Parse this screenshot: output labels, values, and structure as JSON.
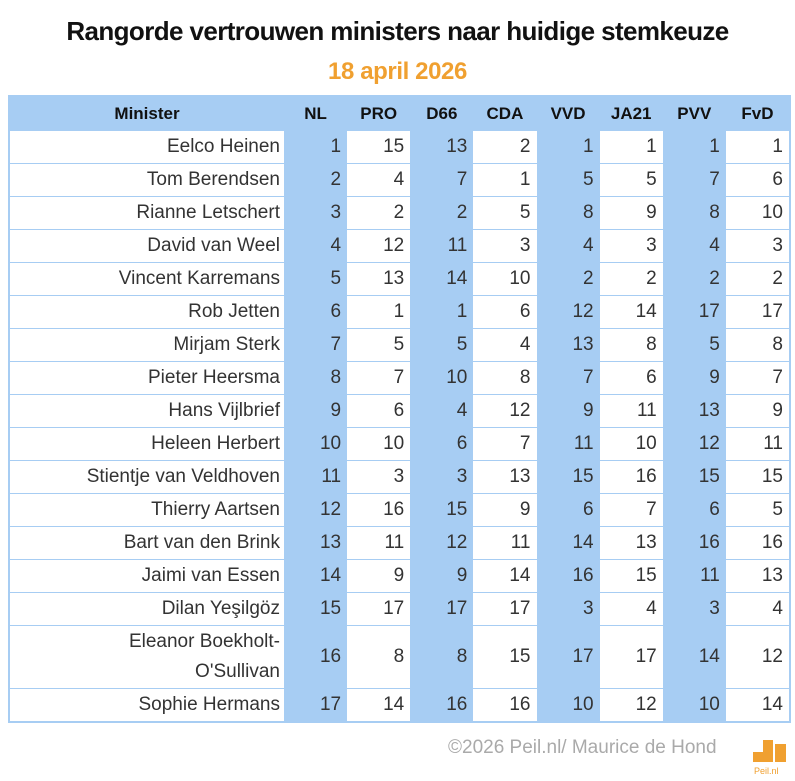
{
  "header": {
    "title": "Rangorde vertrouwen ministers naar huidige stemkeuze",
    "date": "18 april 2026"
  },
  "table": {
    "columns": [
      "Minister",
      "NL",
      "PRO",
      "D66",
      "CDA",
      "VVD",
      "JA21",
      "PVV",
      "FvD"
    ],
    "rows": [
      {
        "name": "Eelco Heinen",
        "values": [
          1,
          15,
          13,
          2,
          1,
          1,
          1,
          1
        ]
      },
      {
        "name": "Tom Berendsen",
        "values": [
          2,
          4,
          7,
          1,
          5,
          5,
          7,
          6
        ]
      },
      {
        "name": "Rianne Letschert",
        "values": [
          3,
          2,
          2,
          5,
          8,
          9,
          8,
          10
        ]
      },
      {
        "name": "David van Weel",
        "values": [
          4,
          12,
          11,
          3,
          4,
          3,
          4,
          3
        ]
      },
      {
        "name": "Vincent Karremans",
        "values": [
          5,
          13,
          14,
          10,
          2,
          2,
          2,
          2
        ]
      },
      {
        "name": "Rob Jetten",
        "values": [
          6,
          1,
          1,
          6,
          12,
          14,
          17,
          17
        ]
      },
      {
        "name": "Mirjam Sterk",
        "values": [
          7,
          5,
          5,
          4,
          13,
          8,
          5,
          8
        ]
      },
      {
        "name": "Pieter Heersma",
        "values": [
          8,
          7,
          10,
          8,
          7,
          6,
          9,
          7
        ]
      },
      {
        "name": "Hans Vijlbrief",
        "values": [
          9,
          6,
          4,
          12,
          9,
          11,
          13,
          9
        ]
      },
      {
        "name": "Heleen Herbert",
        "values": [
          10,
          10,
          6,
          7,
          11,
          10,
          12,
          11
        ]
      },
      {
        "name": "Stientje van Veldhoven",
        "values": [
          11,
          3,
          3,
          13,
          15,
          16,
          15,
          15
        ]
      },
      {
        "name": "Thierry Aartsen",
        "values": [
          12,
          16,
          15,
          9,
          6,
          7,
          6,
          5
        ]
      },
      {
        "name": "Bart van den Brink",
        "values": [
          13,
          11,
          12,
          11,
          14,
          13,
          16,
          16
        ]
      },
      {
        "name": "Jaimi van Essen",
        "values": [
          14,
          9,
          9,
          14,
          16,
          15,
          11,
          13
        ]
      },
      {
        "name": "Dilan Yeşilgöz",
        "values": [
          15,
          17,
          17,
          17,
          3,
          4,
          3,
          4
        ]
      },
      {
        "name": "Eleanor Boekholt-O'Sullivan",
        "name_line1": "Eleanor Boekholt-",
        "name_line2": "O'Sullivan",
        "values": [
          16,
          8,
          8,
          15,
          17,
          17,
          14,
          12
        ]
      },
      {
        "name": "Sophie Hermans",
        "values": [
          17,
          14,
          16,
          16,
          10,
          12,
          10,
          14
        ]
      }
    ]
  },
  "footer": {
    "copyright": "©2026 Peil.nl/ Maurice de Hond",
    "logo_text": "Peil.nl"
  },
  "colors": {
    "header_bg": "#a7cdf3",
    "accent_orange": "#f0a030",
    "text": "#333333"
  },
  "chart_data": {
    "type": "table",
    "title": "Rangorde vertrouwen ministers naar huidige stemkeuze",
    "subtitle": "18 april 2026",
    "columns": [
      "Minister",
      "NL",
      "PRO",
      "D66",
      "CDA",
      "VVD",
      "JA21",
      "PVV",
      "FvD"
    ],
    "rows": [
      [
        "Eelco Heinen",
        1,
        15,
        13,
        2,
        1,
        1,
        1,
        1
      ],
      [
        "Tom Berendsen",
        2,
        4,
        7,
        1,
        5,
        5,
        7,
        6
      ],
      [
        "Rianne Letschert",
        3,
        2,
        2,
        5,
        8,
        9,
        8,
        10
      ],
      [
        "David van Weel",
        4,
        12,
        11,
        3,
        4,
        3,
        4,
        3
      ],
      [
        "Vincent Karremans",
        5,
        13,
        14,
        10,
        2,
        2,
        2,
        2
      ],
      [
        "Rob Jetten",
        6,
        1,
        1,
        6,
        12,
        14,
        17,
        17
      ],
      [
        "Mirjam Sterk",
        7,
        5,
        5,
        4,
        13,
        8,
        5,
        8
      ],
      [
        "Pieter Heersma",
        8,
        7,
        10,
        8,
        7,
        6,
        9,
        7
      ],
      [
        "Hans Vijlbrief",
        9,
        6,
        4,
        12,
        9,
        11,
        13,
        9
      ],
      [
        "Heleen Herbert",
        10,
        10,
        6,
        7,
        11,
        10,
        12,
        11
      ],
      [
        "Stientje van Veldhoven",
        11,
        3,
        3,
        13,
        15,
        16,
        15,
        15
      ],
      [
        "Thierry Aartsen",
        12,
        16,
        15,
        9,
        6,
        7,
        6,
        5
      ],
      [
        "Bart van den Brink",
        13,
        11,
        12,
        11,
        14,
        13,
        16,
        16
      ],
      [
        "Jaimi van Essen",
        14,
        9,
        9,
        14,
        16,
        15,
        11,
        13
      ],
      [
        "Dilan Yeşilgöz",
        15,
        17,
        17,
        17,
        3,
        4,
        3,
        4
      ],
      [
        "Eleanor Boekholt-O'Sullivan",
        16,
        8,
        8,
        15,
        17,
        17,
        14,
        12
      ],
      [
        "Sophie Hermans",
        17,
        14,
        16,
        16,
        10,
        12,
        10,
        14
      ]
    ],
    "source": "©2026 Peil.nl/ Maurice de Hond"
  }
}
